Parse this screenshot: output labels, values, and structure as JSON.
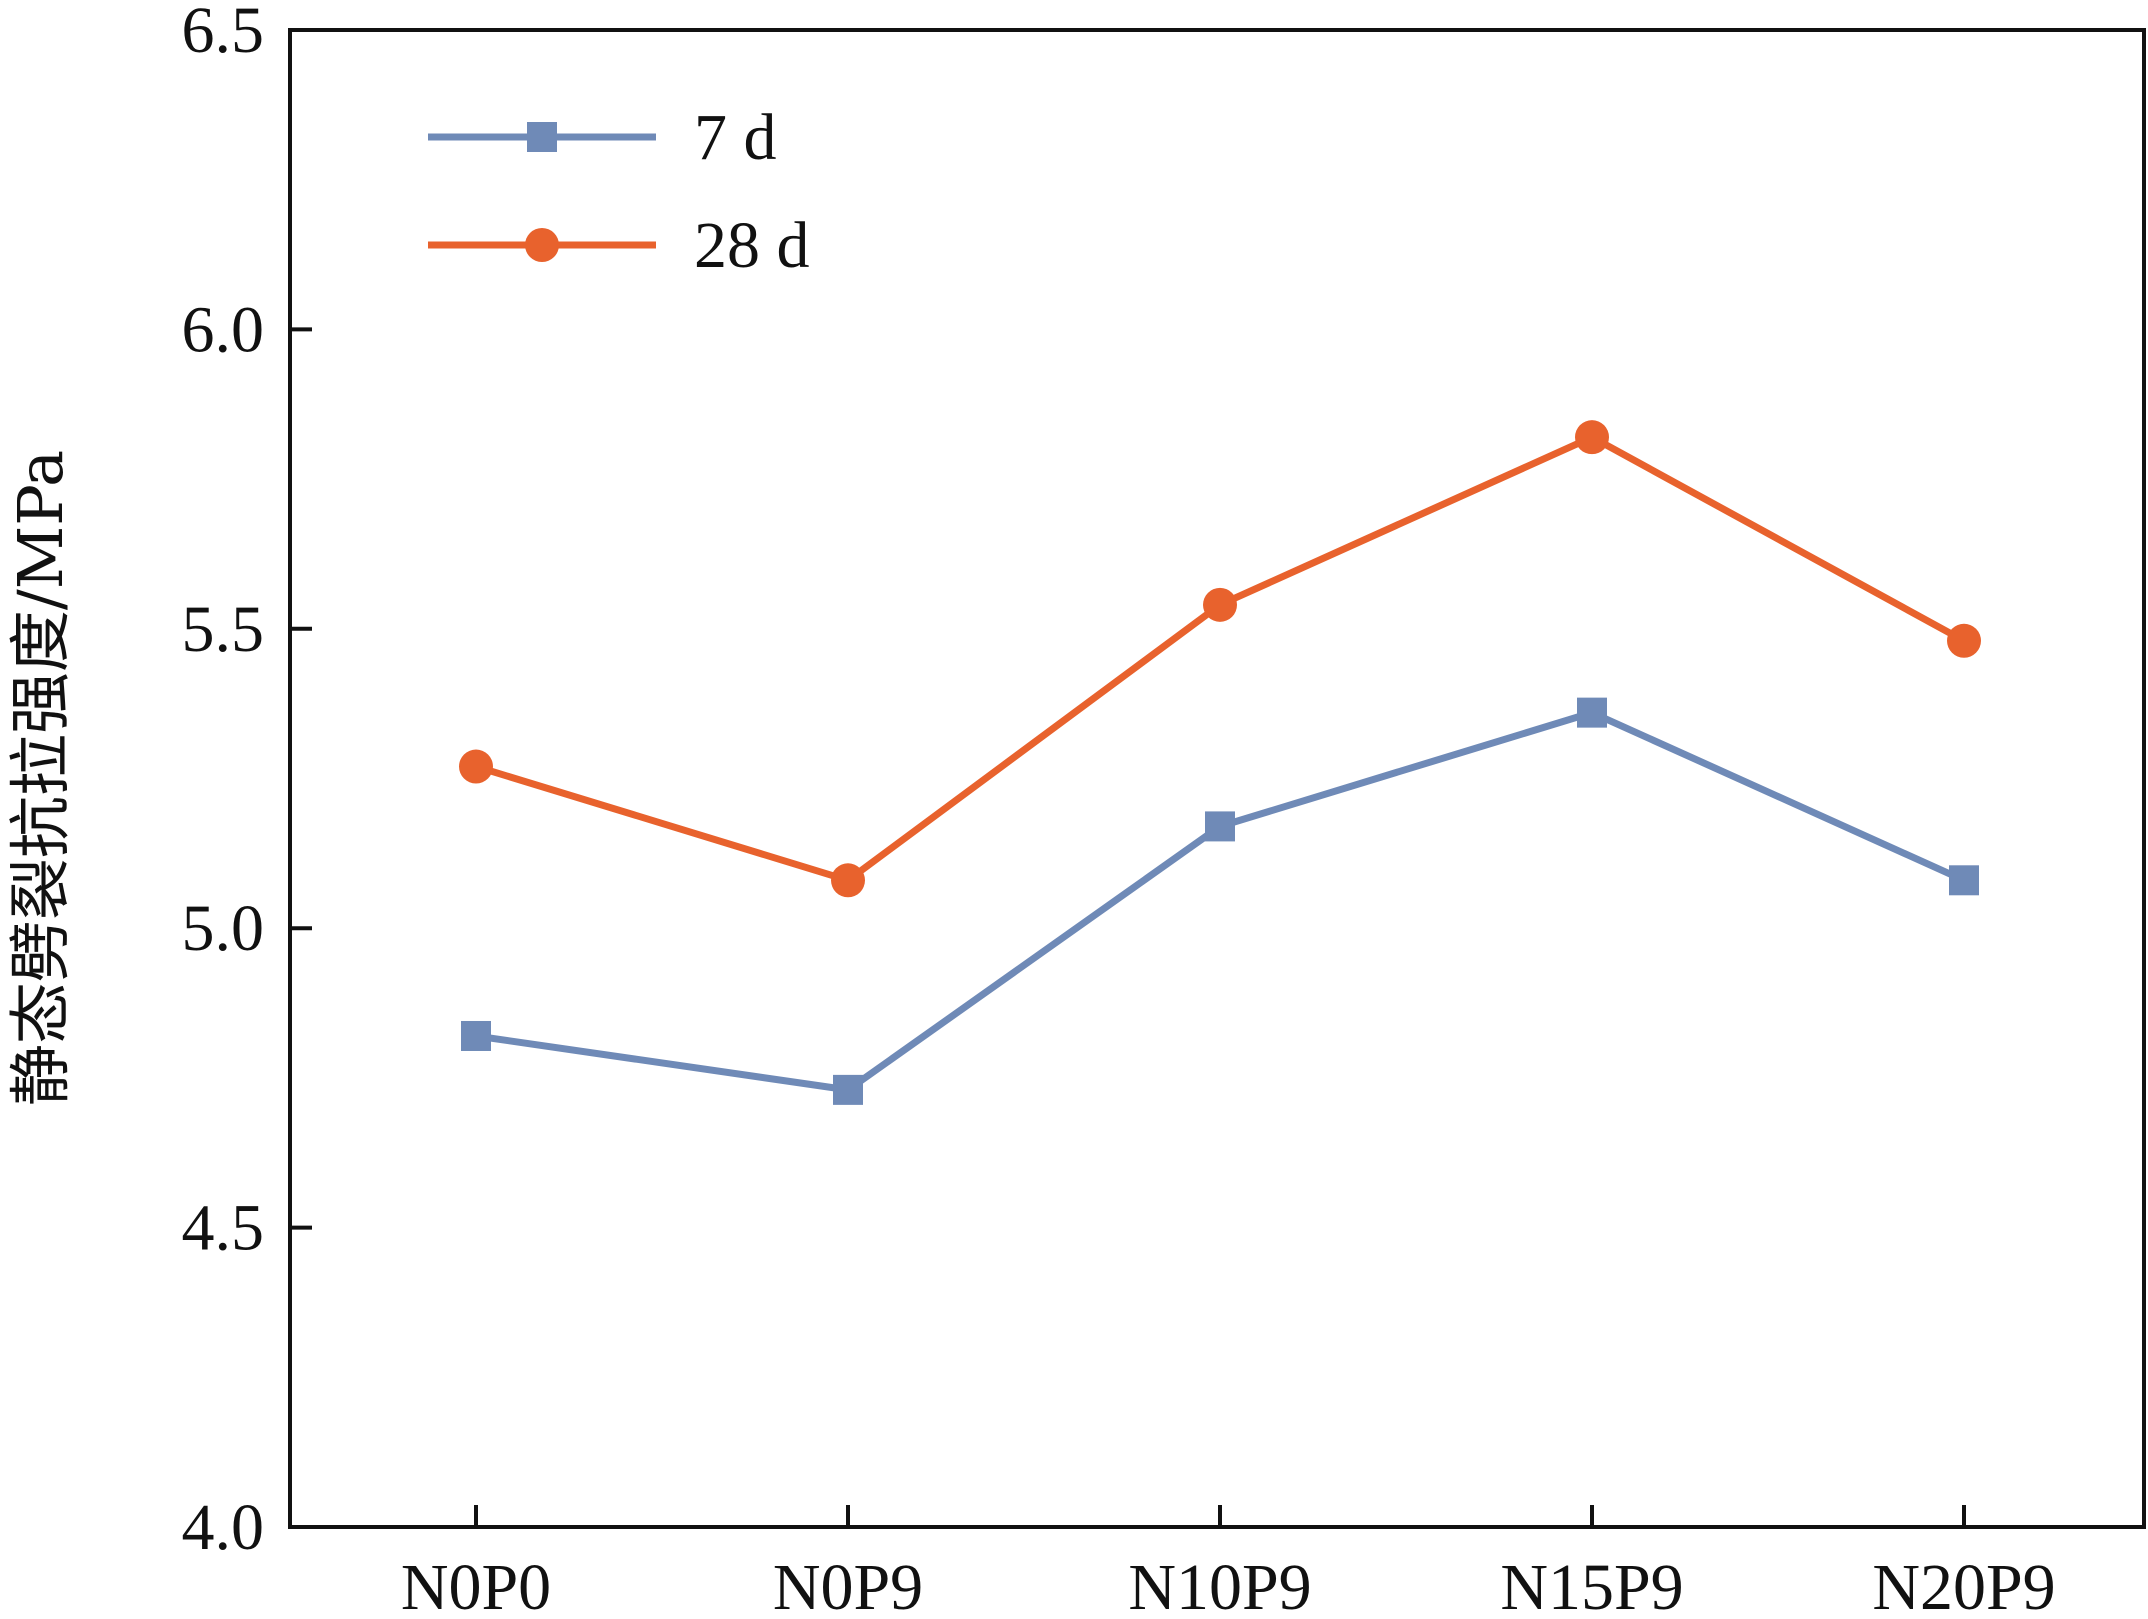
{
  "chart_data": {
    "type": "line",
    "title": "",
    "xlabel": "",
    "ylabel": "静态劈裂抗拉强度/MPa",
    "categories": [
      "N0P0",
      "N0P9",
      "N10P9",
      "N15P9",
      "N20P9"
    ],
    "ylim": [
      4.0,
      6.5
    ],
    "yticks": [
      4.0,
      4.5,
      5.0,
      5.5,
      6.0,
      6.5
    ],
    "ytick_labels": [
      "4.0",
      "4.5",
      "5.0",
      "5.5",
      "6.0",
      "6.5"
    ],
    "grid": false,
    "legend_position": "top-left",
    "series": [
      {
        "name": "7 d",
        "marker": "square",
        "color": "#6F8AB7",
        "values": [
          4.82,
          4.73,
          5.17,
          5.36,
          5.08
        ]
      },
      {
        "name": "28 d",
        "marker": "circle",
        "color": "#E8622D",
        "values": [
          5.27,
          5.08,
          5.54,
          5.82,
          5.48
        ]
      }
    ]
  }
}
